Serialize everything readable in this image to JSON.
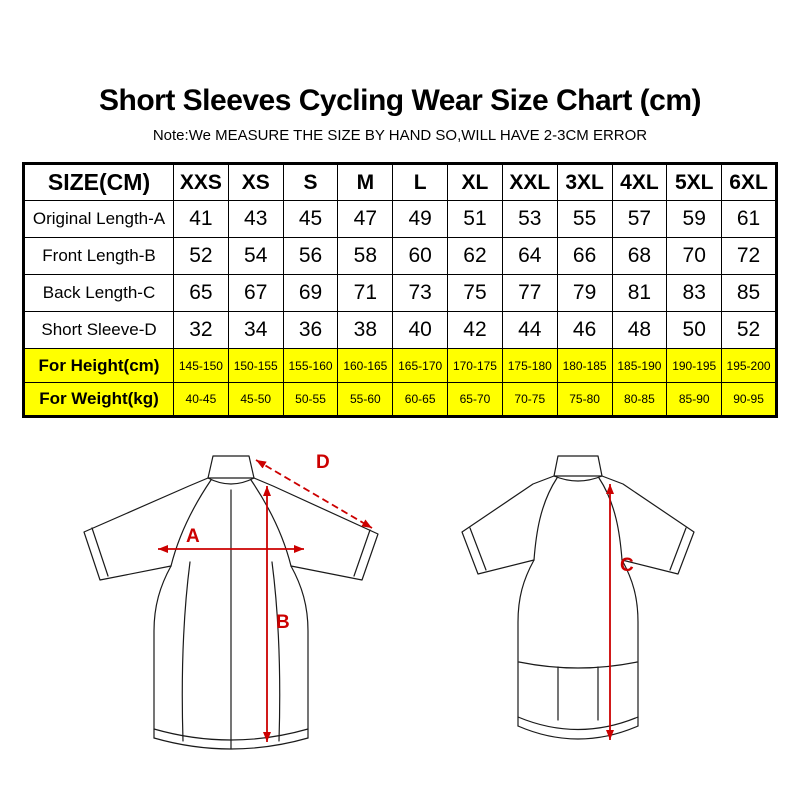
{
  "page": {
    "title": "Short Sleeves Cycling Wear Size Chart (cm)",
    "note": "Note:We MEASURE THE SIZE BY HAND SO,WILL HAVE 2-3CM ERROR"
  },
  "size_table": {
    "header": [
      "SIZE(CM)",
      "XXS",
      "XS",
      "S",
      "M",
      "L",
      "XL",
      "XXL",
      "3XL",
      "4XL",
      "5XL",
      "6XL"
    ],
    "rows": [
      {
        "label": "Original Length-A",
        "highlight": false,
        "values": [
          "41",
          "43",
          "45",
          "47",
          "49",
          "51",
          "53",
          "55",
          "57",
          "59",
          "61"
        ]
      },
      {
        "label": "Front Length-B",
        "highlight": false,
        "values": [
          "52",
          "54",
          "56",
          "58",
          "60",
          "62",
          "64",
          "66",
          "68",
          "70",
          "72"
        ]
      },
      {
        "label": "Back Length-C",
        "highlight": false,
        "values": [
          "65",
          "67",
          "69",
          "71",
          "73",
          "75",
          "77",
          "79",
          "81",
          "83",
          "85"
        ]
      },
      {
        "label": "Short Sleeve-D",
        "highlight": false,
        "values": [
          "32",
          "34",
          "36",
          "38",
          "40",
          "42",
          "44",
          "46",
          "48",
          "50",
          "52"
        ]
      },
      {
        "label": "For Height(cm)",
        "highlight": true,
        "values": [
          "145-150",
          "150-155",
          "155-160",
          "160-165",
          "165-170",
          "170-175",
          "175-180",
          "180-185",
          "185-190",
          "190-195",
          "195-200"
        ]
      },
      {
        "label": "For Weight(kg)",
        "highlight": true,
        "values": [
          "40-45",
          "45-50",
          "50-55",
          "55-60",
          "60-65",
          "65-70",
          "70-75",
          "75-80",
          "80-85",
          "85-90",
          "90-95"
        ]
      }
    ],
    "highlight_color": "#ffff00"
  },
  "diagram": {
    "arrow_color": "#cc0000",
    "labels": {
      "a": "A",
      "b": "B",
      "c": "C",
      "d": "D"
    }
  }
}
